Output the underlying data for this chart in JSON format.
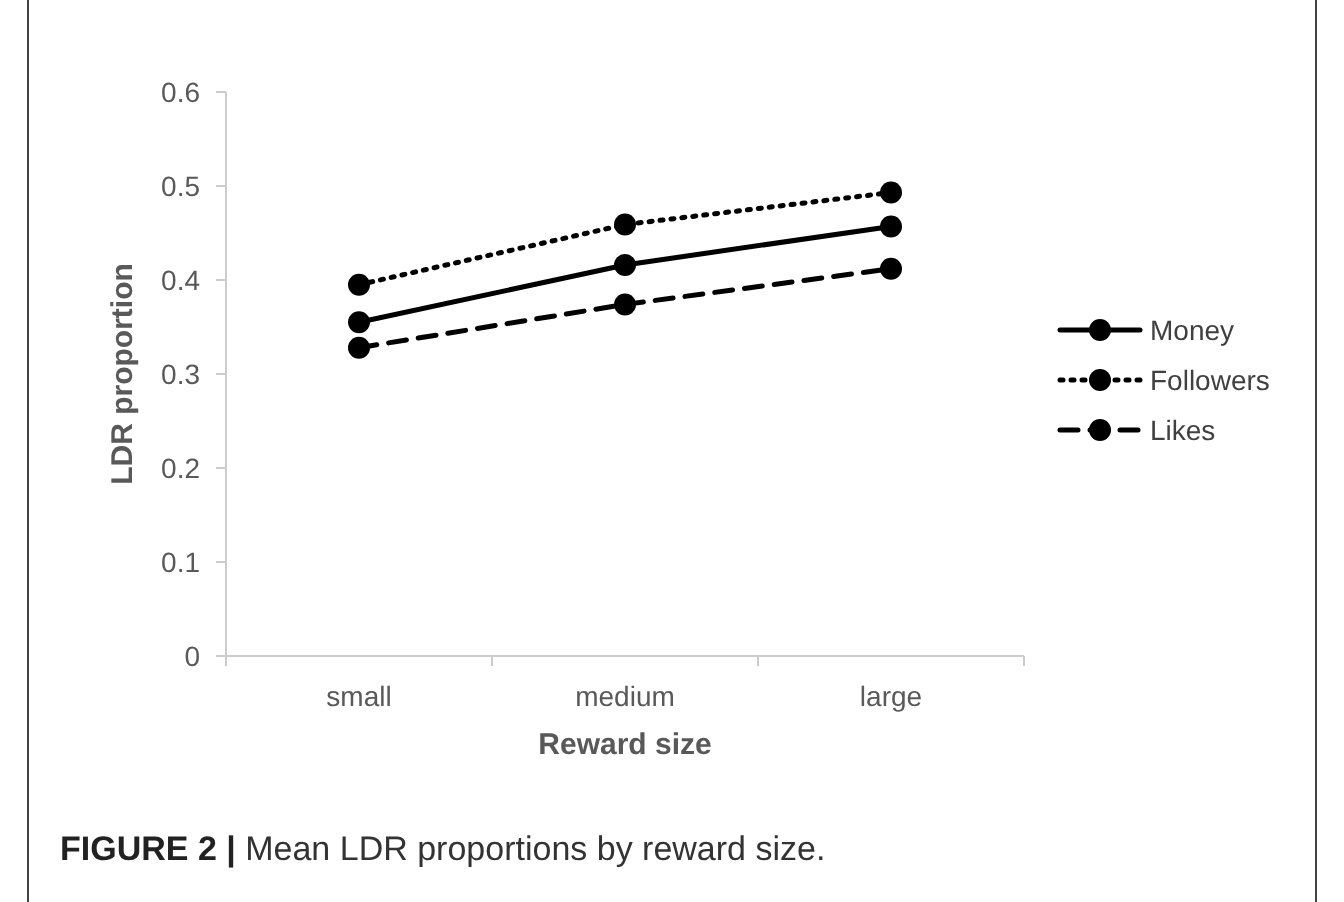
{
  "chart_data": {
    "type": "line",
    "xlabel": "Reward size",
    "ylabel": "LDR proportion",
    "categories": [
      "small",
      "medium",
      "large"
    ],
    "series": [
      {
        "name": "Money",
        "color": "#000000",
        "values": [
          0.355,
          0.416,
          0.457
        ],
        "line_style": "solid"
      },
      {
        "name": "Followers",
        "color": "#000000",
        "values": [
          0.395,
          0.459,
          0.493
        ],
        "line_style": "dotted"
      },
      {
        "name": "Likes",
        "color": "#000000",
        "values": [
          0.328,
          0.374,
          0.412
        ],
        "line_style": "dashed"
      }
    ],
    "ylim": [
      0,
      0.6
    ],
    "yticks": [
      0,
      0.1,
      0.2,
      0.3,
      0.4,
      0.5,
      0.6
    ],
    "grid": false,
    "legend": "right",
    "marker": "circle",
    "annotations": [
      "FIGURE 2 | Mean LDR proportions by reward size."
    ]
  }
}
